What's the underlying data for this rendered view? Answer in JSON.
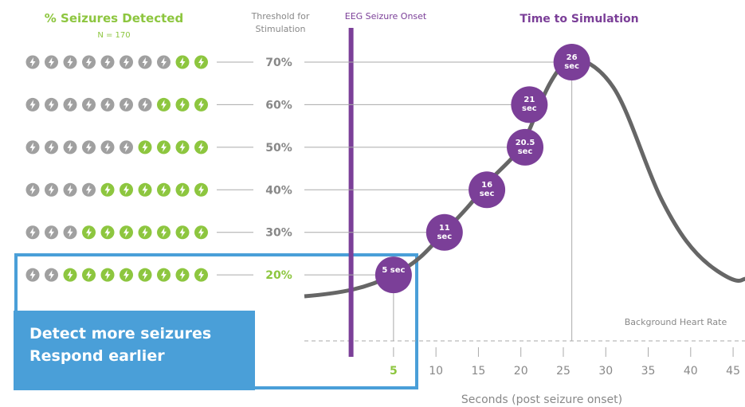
{
  "chart_data": {
    "type": "line",
    "title": "Time to Simulation",
    "left_title": "% Seizures Detected",
    "n_label": "N = 170",
    "threshold_title": [
      "Threshold for",
      "Stimulation"
    ],
    "onset_label": "EEG Seizure Onset",
    "onset_x": 0,
    "baseline_label": "Background Heart Rate",
    "xlabel": "Seconds (post seizure onset)",
    "xlim": [
      -5.5,
      46.4
    ],
    "ylim": [
      4.5,
      70
    ],
    "xticks": [
      5,
      10,
      15,
      20,
      25,
      30,
      35,
      40,
      45
    ],
    "yticks": [
      {
        "value": 20,
        "label": "20%"
      },
      {
        "value": 30,
        "label": "30%"
      },
      {
        "value": 40,
        "label": "40%"
      },
      {
        "value": 50,
        "label": "50%"
      },
      {
        "value": 60,
        "label": "60%"
      },
      {
        "value": 70,
        "label": "70%"
      }
    ],
    "x": [
      5,
      11,
      16,
      20.5,
      21,
      26
    ],
    "values": [
      20,
      30,
      40,
      50,
      60,
      70
    ],
    "value_labels": [
      "5 sec",
      "11 sec",
      "16 sec",
      "20.5 sec",
      "21 sec",
      "26 sec"
    ],
    "detected": [
      8,
      7,
      6,
      4,
      3,
      2
    ],
    "icon_count": 10,
    "callout": [
      "Detect more seizures",
      "Respond earlier"
    ],
    "colors": {
      "green": "#8dc63f",
      "gray": "#a0a0a0",
      "purple": "#7b3f98",
      "blue": "#4a9fd8"
    }
  }
}
